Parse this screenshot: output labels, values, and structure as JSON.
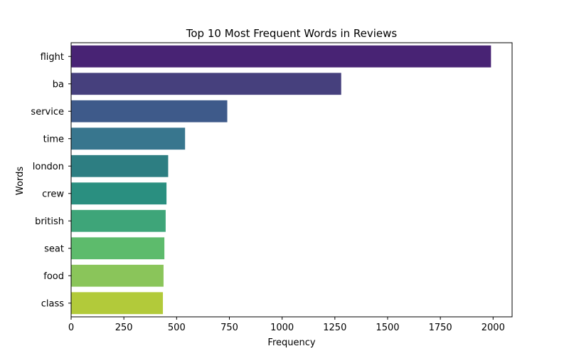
{
  "chart_data": {
    "type": "bar",
    "orientation": "horizontal",
    "title": "Top 10 Most Frequent Words in Reviews",
    "xlabel": "Frequency",
    "ylabel": "Words",
    "categories": [
      "flight",
      "ba",
      "service",
      "time",
      "london",
      "crew",
      "british",
      "seat",
      "food",
      "class"
    ],
    "values": [
      1990,
      1280,
      740,
      540,
      460,
      452,
      448,
      442,
      438,
      435
    ],
    "xlim": [
      0,
      2090
    ],
    "xticks": [
      0,
      250,
      500,
      750,
      1000,
      1250,
      1500,
      1750,
      2000
    ],
    "grid": false,
    "colors": [
      "#482374",
      "#46407d",
      "#3e5a8a",
      "#38768e",
      "#2d7e82",
      "#2a8f80",
      "#3ea579",
      "#5dbb6c",
      "#8ac55a",
      "#b2ca3a"
    ]
  }
}
